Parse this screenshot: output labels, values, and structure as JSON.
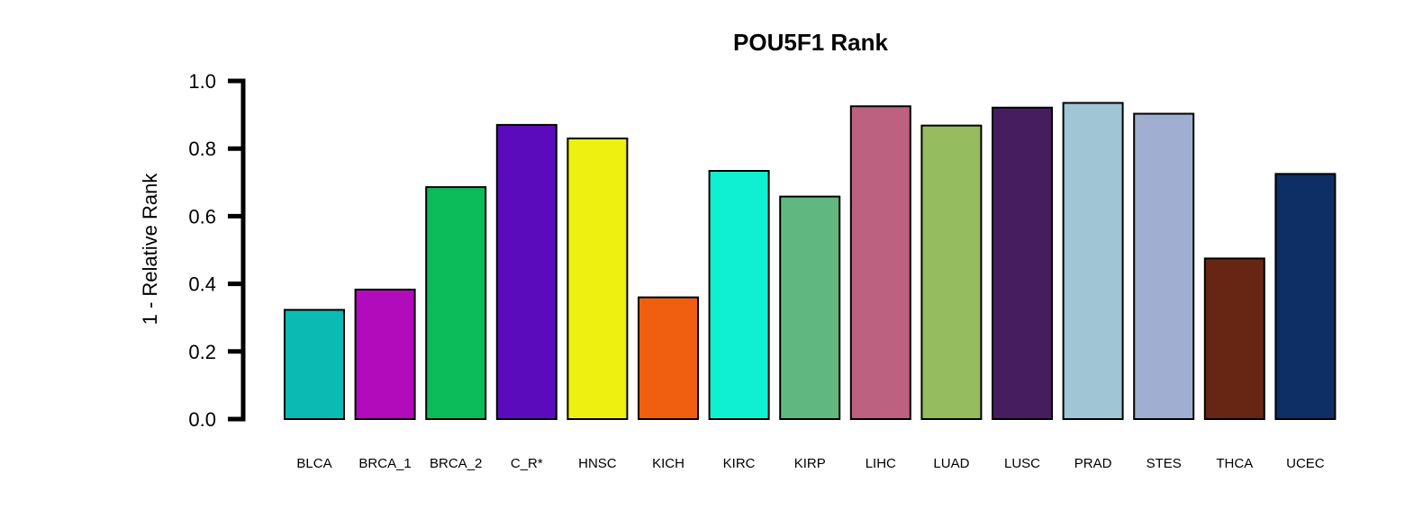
{
  "chart_data": {
    "type": "bar",
    "title": "POU5F1 Rank",
    "xlabel": "",
    "ylabel": "1 - Relative Rank",
    "ylim": [
      0,
      1.0
    ],
    "yticks": [
      0.0,
      0.2,
      0.4,
      0.6,
      0.8,
      1.0
    ],
    "ytick_labels": [
      "0.0",
      "0.2",
      "0.4",
      "0.6",
      "0.8",
      "1.0"
    ],
    "grid": false,
    "legend": "none",
    "categories": [
      "BLCA",
      "BRCA_1",
      "BRCA_2",
      "C_R*",
      "HNSC",
      "KICH",
      "KIRC",
      "KIRP",
      "LIHC",
      "LUAD",
      "LUSC",
      "PRAD",
      "STES",
      "THCA",
      "UCEC"
    ],
    "values": [
      0.323,
      0.383,
      0.686,
      0.87,
      0.83,
      0.36,
      0.734,
      0.658,
      0.925,
      0.868,
      0.921,
      0.935,
      0.903,
      0.475,
      0.725
    ],
    "colors": [
      "#0bbbb3",
      "#b20bbb",
      "#0bbb5a",
      "#5b0bbb",
      "#eef00f",
      "#f05f0f",
      "#0ff0d0",
      "#60b880",
      "#bd6180",
      "#96bc60",
      "#461e5f",
      "#a0c5d5",
      "#9faed1",
      "#672613",
      "#0e2e66"
    ]
  }
}
